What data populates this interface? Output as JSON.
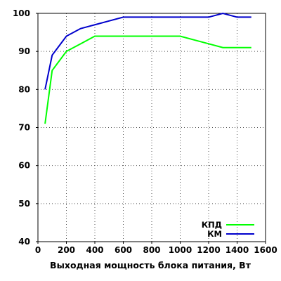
{
  "chart_data": {
    "type": "line",
    "title": "",
    "xlabel": "Выходная мощность блока питания, Вт",
    "ylabel": "",
    "xlim": [
      0,
      1600
    ],
    "ylim": [
      40,
      100
    ],
    "xticks": [
      0,
      200,
      400,
      600,
      800,
      1000,
      1200,
      1400,
      1600
    ],
    "yticks": [
      40,
      50,
      60,
      70,
      80,
      90,
      100
    ],
    "grid": true,
    "legend_position": "bottom-right",
    "series": [
      {
        "name": "КПД",
        "color": "#00ff00",
        "points": [
          [
            50,
            71
          ],
          [
            100,
            85
          ],
          [
            200,
            90
          ],
          [
            300,
            92
          ],
          [
            400,
            94
          ],
          [
            500,
            94
          ],
          [
            600,
            94
          ],
          [
            700,
            94
          ],
          [
            800,
            94
          ],
          [
            900,
            94
          ],
          [
            1000,
            94
          ],
          [
            1100,
            93
          ],
          [
            1200,
            92
          ],
          [
            1300,
            91
          ],
          [
            1400,
            91
          ],
          [
            1500,
            91
          ]
        ]
      },
      {
        "name": "КМ",
        "color": "#0000cc",
        "points": [
          [
            50,
            80
          ],
          [
            100,
            89
          ],
          [
            200,
            94
          ],
          [
            300,
            96
          ],
          [
            400,
            97
          ],
          [
            500,
            98
          ],
          [
            600,
            99
          ],
          [
            700,
            99
          ],
          [
            800,
            99
          ],
          [
            900,
            99
          ],
          [
            1000,
            99
          ],
          [
            1100,
            99
          ],
          [
            1200,
            99
          ],
          [
            1300,
            100
          ],
          [
            1400,
            99
          ],
          [
            1500,
            99
          ]
        ]
      }
    ]
  }
}
